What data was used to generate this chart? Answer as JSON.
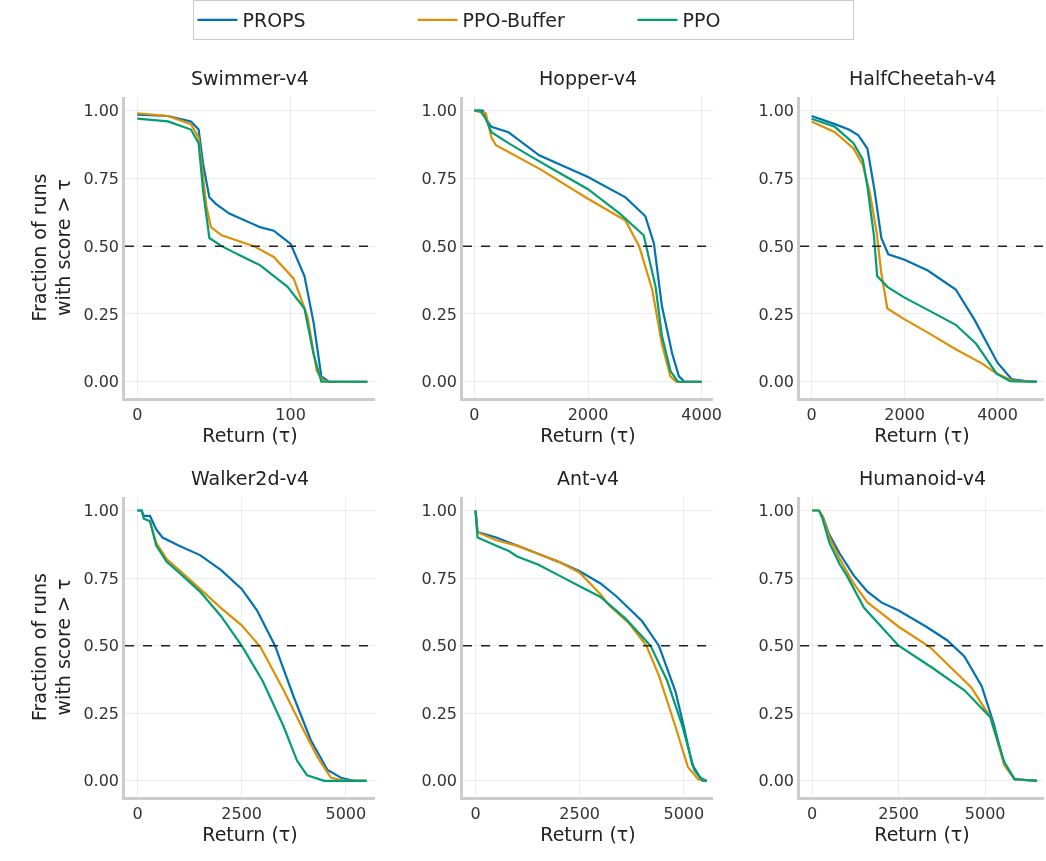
{
  "chart_data": [
    {
      "type": "line",
      "title": "Swimmer-v4",
      "xlabel": "Return (τ)",
      "ylabel": "Fraction of runs\nwith score > τ",
      "xlim": [
        -8,
        155
      ],
      "xticks": [
        0,
        100
      ],
      "ylim": [
        -0.06,
        1.05
      ],
      "yticks": [
        {
          "value": 0,
          "label": "0.00"
        },
        {
          "value": 0.25,
          "label": "0.25"
        },
        {
          "value": 0.5,
          "label": "0.50"
        },
        {
          "value": 0.75,
          "label": "0.75"
        },
        {
          "value": 1,
          "label": "1.00"
        }
      ],
      "grid": true,
      "legend": "top",
      "line_style": "solid",
      "ref_lines": [
        {
          "axis": "y",
          "value": 0.5,
          "color": "#222222",
          "line_style": "dashed"
        }
      ],
      "series": [
        {
          "name": "PROPS",
          "color": "#0173b2",
          "x": [
            0,
            20,
            35,
            40,
            43,
            47,
            51,
            60,
            80,
            89,
            100,
            109,
            115,
            120,
            125,
            150
          ],
          "values": [
            0.985,
            0.98,
            0.96,
            0.93,
            0.8,
            0.68,
            0.657,
            0.62,
            0.57,
            0.557,
            0.508,
            0.39,
            0.217,
            0.02,
            0,
            0
          ]
        },
        {
          "name": "PPO-Buffer",
          "color": "#de8f05",
          "x": [
            0,
            20,
            35,
            40,
            45,
            48,
            55,
            76,
            89,
            102,
            111,
            117,
            121,
            125,
            150
          ],
          "values": [
            0.99,
            0.98,
            0.95,
            0.9,
            0.65,
            0.57,
            0.54,
            0.5,
            0.46,
            0.38,
            0.24,
            0.04,
            0.005,
            0,
            0
          ]
        },
        {
          "name": "PPO",
          "color": "#029e73",
          "x": [
            0,
            20,
            35,
            40,
            43,
            47,
            55,
            63,
            80,
            98,
            109,
            115,
            120,
            150
          ],
          "values": [
            0.97,
            0.96,
            0.93,
            0.88,
            0.7,
            0.53,
            0.5,
            0.477,
            0.43,
            0.35,
            0.27,
            0.1,
            0,
            0
          ]
        }
      ]
    },
    {
      "type": "line",
      "title": "Hopper-v4",
      "xlabel": "Return (τ)",
      "xlim": [
        -200,
        4200
      ],
      "xticks": [
        0,
        2000,
        4000
      ],
      "ylim": [
        -0.06,
        1.05
      ],
      "yticks": [
        {
          "value": 0,
          "label": "0.00"
        },
        {
          "value": 0.25,
          "label": "0.25"
        },
        {
          "value": 0.5,
          "label": "0.50"
        },
        {
          "value": 0.75,
          "label": "0.75"
        },
        {
          "value": 1,
          "label": "1.00"
        }
      ],
      "grid": true,
      "line_style": "solid",
      "ref_lines": [
        {
          "axis": "y",
          "value": 0.5,
          "color": "#222222",
          "line_style": "dashed"
        }
      ],
      "series": [
        {
          "color": "#0173b2",
          "x": [
            0,
            150,
            200,
            300,
            600,
            1140,
            2000,
            2660,
            3010,
            3160,
            3300,
            3480,
            3600,
            3700,
            4000
          ],
          "values": [
            1,
            1,
            0.97,
            0.94,
            0.92,
            0.835,
            0.755,
            0.68,
            0.61,
            0.51,
            0.28,
            0.105,
            0.02,
            0,
            0
          ]
        },
        {
          "color": "#de8f05",
          "x": [
            0,
            200,
            300,
            380,
            1140,
            2000,
            2660,
            2900,
            3130,
            3300,
            3450,
            3550,
            4000
          ],
          "values": [
            1,
            0.99,
            0.9,
            0.872,
            0.786,
            0.675,
            0.594,
            0.5,
            0.34,
            0.14,
            0.02,
            0,
            0
          ]
        },
        {
          "color": "#029e73",
          "x": [
            0,
            100,
            200,
            300,
            600,
            1000,
            1500,
            2000,
            2560,
            2980,
            3190,
            3300,
            3450,
            3580,
            4000
          ],
          "values": [
            1,
            1,
            0.97,
            0.92,
            0.88,
            0.83,
            0.77,
            0.71,
            0.62,
            0.54,
            0.35,
            0.17,
            0.04,
            0,
            0
          ]
        }
      ]
    },
    {
      "type": "line",
      "title": "HalfCheetah-v4",
      "xlabel": "Return (τ)",
      "xlim": [
        -250,
        5000
      ],
      "xticks": [
        0,
        2000,
        4000
      ],
      "ylim": [
        -0.06,
        1.05
      ],
      "yticks": [
        {
          "value": 0,
          "label": "0.00"
        },
        {
          "value": 0.25,
          "label": "0.25"
        },
        {
          "value": 0.5,
          "label": "0.50"
        },
        {
          "value": 0.75,
          "label": "0.75"
        },
        {
          "value": 1,
          "label": "1.00"
        }
      ],
      "grid": true,
      "line_style": "solid",
      "ref_lines": [
        {
          "axis": "y",
          "value": 0.5,
          "color": "#222222",
          "line_style": "dashed"
        }
      ],
      "series": [
        {
          "color": "#0173b2",
          "x": [
            0,
            500,
            800,
            1000,
            1200,
            1350,
            1500,
            1650,
            2000,
            2500,
            3100,
            3500,
            4000,
            4300,
            4600,
            4850
          ],
          "values": [
            0.98,
            0.95,
            0.93,
            0.91,
            0.86,
            0.71,
            0.53,
            0.47,
            0.45,
            0.41,
            0.34,
            0.23,
            0.07,
            0.01,
            0.002,
            0
          ]
        },
        {
          "color": "#de8f05",
          "x": [
            0,
            500,
            900,
            1100,
            1250,
            1400,
            1500,
            1630,
            2000,
            2510,
            3100,
            3680,
            3980,
            4300,
            4850
          ],
          "values": [
            0.96,
            0.92,
            0.86,
            0.8,
            0.7,
            0.55,
            0.4,
            0.27,
            0.23,
            0.18,
            0.12,
            0.066,
            0.03,
            0.005,
            0
          ]
        },
        {
          "color": "#029e73",
          "x": [
            0,
            500,
            900,
            1100,
            1200,
            1340,
            1410,
            1630,
            2000,
            2510,
            3100,
            3540,
            3980,
            4270,
            4850
          ],
          "values": [
            0.97,
            0.94,
            0.88,
            0.82,
            0.72,
            0.54,
            0.39,
            0.35,
            0.31,
            0.264,
            0.21,
            0.14,
            0.03,
            0.002,
            0
          ]
        }
      ]
    },
    {
      "type": "line",
      "title": "Walker2d-v4",
      "xlabel": "Return (τ)",
      "ylabel": "Fraction of runs\nwith score > τ",
      "xlim": [
        -300,
        5700
      ],
      "xticks": [
        0,
        2500,
        5000
      ],
      "ylim": [
        -0.06,
        1.05
      ],
      "yticks": [
        {
          "value": 0,
          "label": "0.00"
        },
        {
          "value": 0.25,
          "label": "0.25"
        },
        {
          "value": 0.5,
          "label": "0.50"
        },
        {
          "value": 0.75,
          "label": "0.75"
        },
        {
          "value": 1,
          "label": "1.00"
        }
      ],
      "grid": true,
      "line_style": "solid",
      "ref_lines": [
        {
          "axis": "y",
          "value": 0.5,
          "color": "#222222",
          "line_style": "dashed"
        }
      ],
      "series": [
        {
          "color": "#0173b2",
          "x": [
            0,
            100,
            150,
            300,
            450,
            600,
            1000,
            1500,
            2000,
            2500,
            2870,
            3300,
            3750,
            4160,
            4560,
            4900,
            5200,
            5500
          ],
          "values": [
            1,
            1,
            0.98,
            0.98,
            0.93,
            0.9,
            0.87,
            0.835,
            0.78,
            0.71,
            0.63,
            0.5,
            0.31,
            0.15,
            0.04,
            0.01,
            0,
            0
          ]
        },
        {
          "color": "#de8f05",
          "x": [
            300,
            450,
            700,
            1000,
            1500,
            2000,
            2500,
            2950,
            3510,
            3910,
            4320,
            4640,
            4900,
            5500
          ],
          "values": [
            0.96,
            0.88,
            0.82,
            0.78,
            0.71,
            0.64,
            0.575,
            0.495,
            0.334,
            0.21,
            0.087,
            0.012,
            0.002,
            0
          ]
        },
        {
          "color": "#029e73",
          "x": [
            0,
            100,
            150,
            300,
            450,
            700,
            1000,
            1500,
            2000,
            2500,
            3000,
            3110,
            3510,
            3830,
            4070,
            4480,
            5500
          ],
          "values": [
            1,
            1,
            0.97,
            0.96,
            0.87,
            0.81,
            0.77,
            0.7,
            0.61,
            0.5,
            0.37,
            0.334,
            0.2,
            0.074,
            0.02,
            0,
            0
          ]
        }
      ]
    },
    {
      "type": "line",
      "title": "Ant-v4",
      "xlabel": "Return (τ)",
      "xlim": [
        -300,
        5700
      ],
      "xticks": [
        0,
        2500,
        5000
      ],
      "ylim": [
        -0.06,
        1.05
      ],
      "yticks": [
        {
          "value": 0,
          "label": "0.00"
        },
        {
          "value": 0.25,
          "label": "0.25"
        },
        {
          "value": 0.5,
          "label": "0.50"
        },
        {
          "value": 0.75,
          "label": "0.75"
        },
        {
          "value": 1,
          "label": "1.00"
        }
      ],
      "grid": true,
      "line_style": "solid",
      "ref_lines": [
        {
          "axis": "y",
          "value": 0.5,
          "color": "#222222",
          "line_style": "dashed"
        }
      ],
      "series": [
        {
          "color": "#0173b2",
          "x": [
            0,
            50,
            500,
            1000,
            1500,
            2000,
            2500,
            3000,
            3400,
            4000,
            4400,
            4800,
            5000,
            5200,
            5400,
            5550
          ],
          "values": [
            1,
            0.92,
            0.9,
            0.87,
            0.84,
            0.81,
            0.775,
            0.73,
            0.68,
            0.59,
            0.5,
            0.33,
            0.2,
            0.06,
            0.01,
            0
          ]
        },
        {
          "color": "#de8f05",
          "x": [
            0,
            50,
            500,
            1000,
            1500,
            2000,
            2500,
            3000,
            3200,
            3700,
            4100,
            4400,
            4800,
            5100,
            5350,
            5550
          ],
          "values": [
            1,
            0.92,
            0.89,
            0.87,
            0.84,
            0.81,
            0.77,
            0.69,
            0.65,
            0.58,
            0.5,
            0.39,
            0.2,
            0.05,
            0.005,
            0
          ]
        },
        {
          "color": "#029e73",
          "x": [
            0,
            50,
            500,
            800,
            1000,
            1500,
            2000,
            2500,
            3000,
            3600,
            4200,
            4600,
            4950,
            5250,
            5450,
            5550
          ],
          "values": [
            1,
            0.9,
            0.87,
            0.85,
            0.83,
            0.8,
            0.76,
            0.72,
            0.68,
            0.6,
            0.5,
            0.37,
            0.21,
            0.04,
            0,
            0
          ]
        }
      ]
    },
    {
      "type": "line",
      "title": "Humanoid-v4",
      "xlabel": "Return (τ)",
      "xlim": [
        -350,
        6700
      ],
      "xticks": [
        0,
        2500,
        5000
      ],
      "ylim": [
        -0.06,
        1.05
      ],
      "yticks": [
        {
          "value": 0,
          "label": "0.00"
        },
        {
          "value": 0.25,
          "label": "0.25"
        },
        {
          "value": 0.5,
          "label": "0.50"
        },
        {
          "value": 0.75,
          "label": "0.75"
        },
        {
          "value": 1,
          "label": "1.00"
        }
      ],
      "grid": true,
      "line_style": "solid",
      "ref_lines": [
        {
          "axis": "y",
          "value": 0.5,
          "color": "#222222",
          "line_style": "dashed"
        }
      ],
      "series": [
        {
          "color": "#0173b2",
          "x": [
            300,
            500,
            800,
            1200,
            1600,
            2000,
            2500,
            3300,
            3900,
            4400,
            4900,
            5250,
            5550,
            5850,
            6500
          ],
          "values": [
            0.98,
            0.91,
            0.84,
            0.76,
            0.7,
            0.66,
            0.63,
            0.57,
            0.52,
            0.46,
            0.35,
            0.21,
            0.06,
            0.006,
            0
          ]
        },
        {
          "color": "#de8f05",
          "x": [
            0,
            200,
            300,
            500,
            800,
            1200,
            1600,
            2000,
            2500,
            3400,
            4000,
            4600,
            5150,
            5550,
            5850,
            6500
          ],
          "values": [
            1,
            1,
            0.98,
            0.9,
            0.82,
            0.73,
            0.66,
            0.62,
            0.57,
            0.495,
            0.42,
            0.345,
            0.235,
            0.06,
            0.005,
            0
          ]
        },
        {
          "color": "#029e73",
          "x": [
            0,
            200,
            300,
            500,
            800,
            1000,
            1500,
            2000,
            2500,
            3450,
            4400,
            5150,
            5550,
            5850,
            6500
          ],
          "values": [
            1,
            1,
            0.97,
            0.88,
            0.8,
            0.76,
            0.64,
            0.57,
            0.5,
            0.42,
            0.335,
            0.235,
            0.07,
            0.006,
            0
          ]
        }
      ]
    }
  ]
}
